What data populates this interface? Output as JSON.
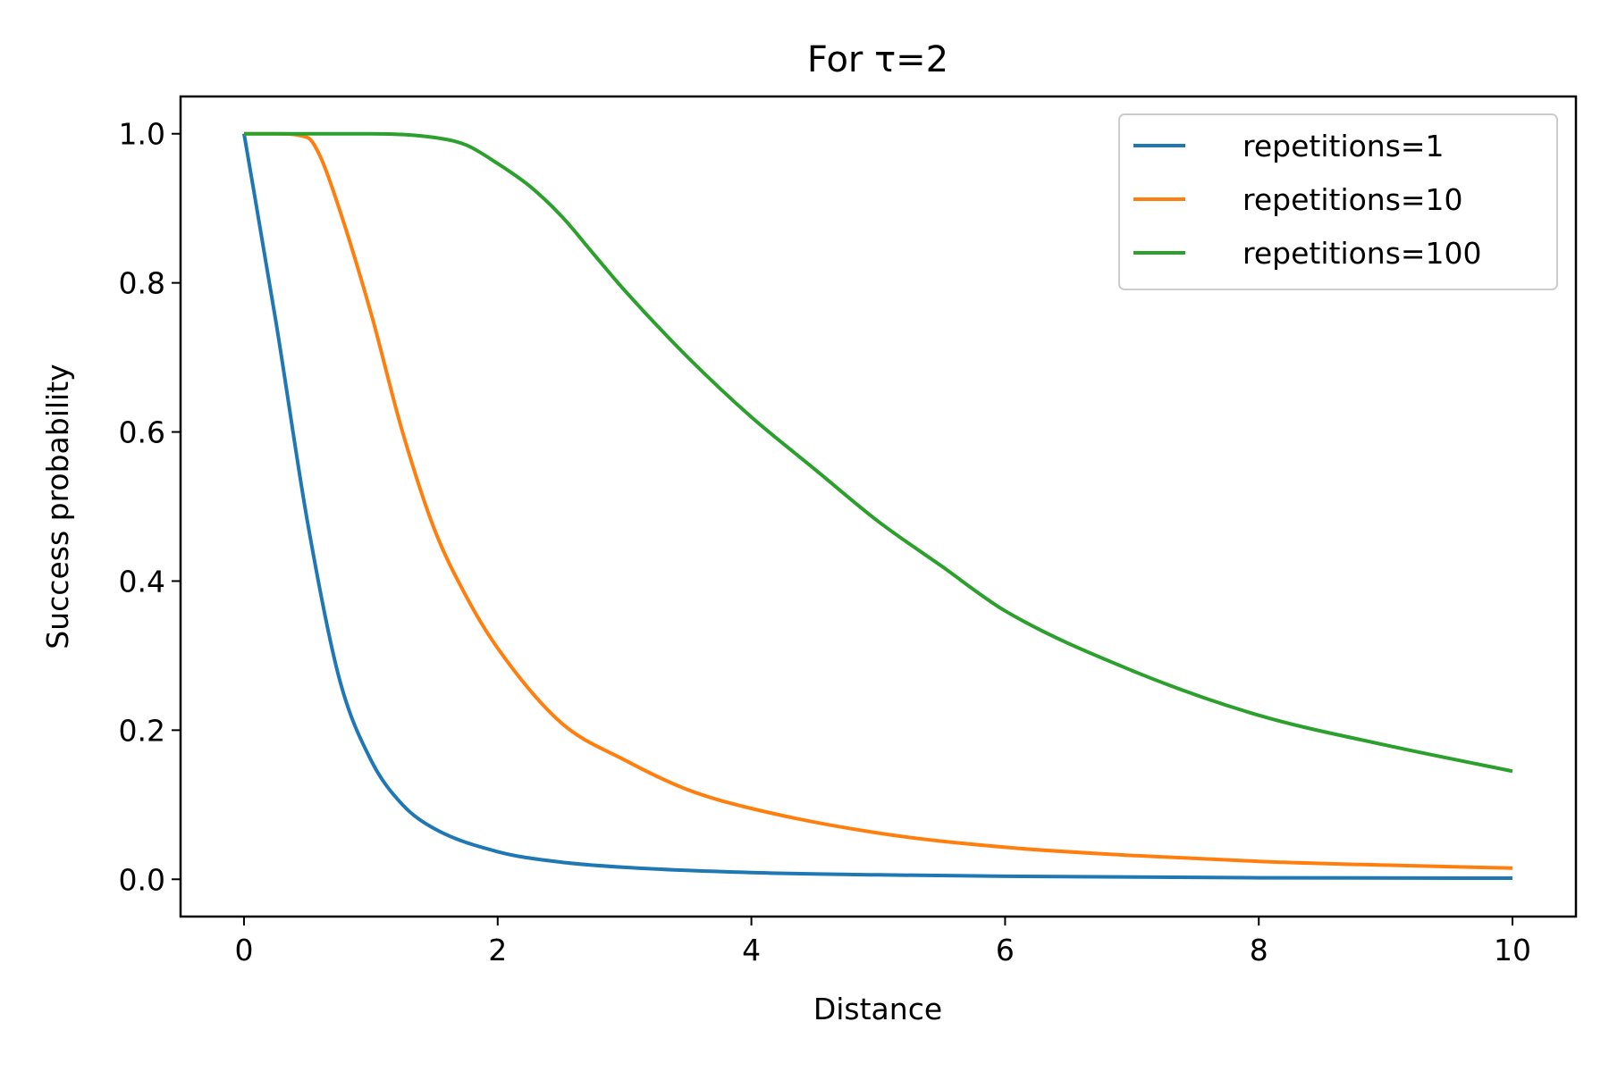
{
  "chart_data": {
    "type": "line",
    "title": "For τ=2",
    "xlabel": "Distance",
    "ylabel": "Success probability",
    "xlim": [
      -0.5,
      10.5
    ],
    "ylim": [
      -0.05,
      1.05
    ],
    "xticks": [
      0,
      2,
      4,
      6,
      8,
      10
    ],
    "xtick_labels": [
      "0",
      "2",
      "4",
      "6",
      "8",
      "10"
    ],
    "yticks": [
      0.0,
      0.2,
      0.4,
      0.6,
      0.8,
      1.0
    ],
    "ytick_labels": [
      "0.0",
      "0.2",
      "0.4",
      "0.6",
      "0.8",
      "1.0"
    ],
    "grid": false,
    "legend_position": "top-right",
    "series": [
      {
        "name": "repetitions=1",
        "color": "#1f77b4",
        "x": [
          0,
          0.25,
          0.5,
          0.75,
          1,
          1.25,
          1.5,
          2,
          2.5,
          3,
          4,
          5,
          6,
          8,
          10
        ],
        "y": [
          1.0,
          0.75,
          0.48,
          0.27,
          0.16,
          0.1,
          0.068,
          0.037,
          0.023,
          0.016,
          0.009,
          0.006,
          0.004,
          0.002,
          0.0015
        ]
      },
      {
        "name": "repetitions=10",
        "color": "#ff7f0e",
        "x": [
          0,
          0.25,
          0.5,
          0.6,
          0.75,
          1,
          1.25,
          1.5,
          1.75,
          2,
          2.5,
          3,
          3.5,
          4,
          5,
          6,
          7,
          8,
          9,
          10
        ],
        "y": [
          1.0,
          1.0,
          0.995,
          0.97,
          0.9,
          0.76,
          0.6,
          0.47,
          0.38,
          0.31,
          0.21,
          0.16,
          0.12,
          0.095,
          0.062,
          0.043,
          0.032,
          0.024,
          0.019,
          0.015
        ]
      },
      {
        "name": "repetitions=100",
        "color": "#2ca02c",
        "x": [
          0,
          0.5,
          1,
          1.5,
          1.75,
          2,
          2.25,
          2.5,
          2.75,
          3,
          3.5,
          4,
          4.5,
          5,
          5.5,
          6,
          7,
          8,
          9,
          10
        ],
        "y": [
          1.0,
          1.0,
          1.0,
          0.995,
          0.985,
          0.96,
          0.93,
          0.89,
          0.84,
          0.79,
          0.7,
          0.62,
          0.55,
          0.48,
          0.42,
          0.36,
          0.28,
          0.22,
          0.18,
          0.145
        ]
      }
    ]
  }
}
